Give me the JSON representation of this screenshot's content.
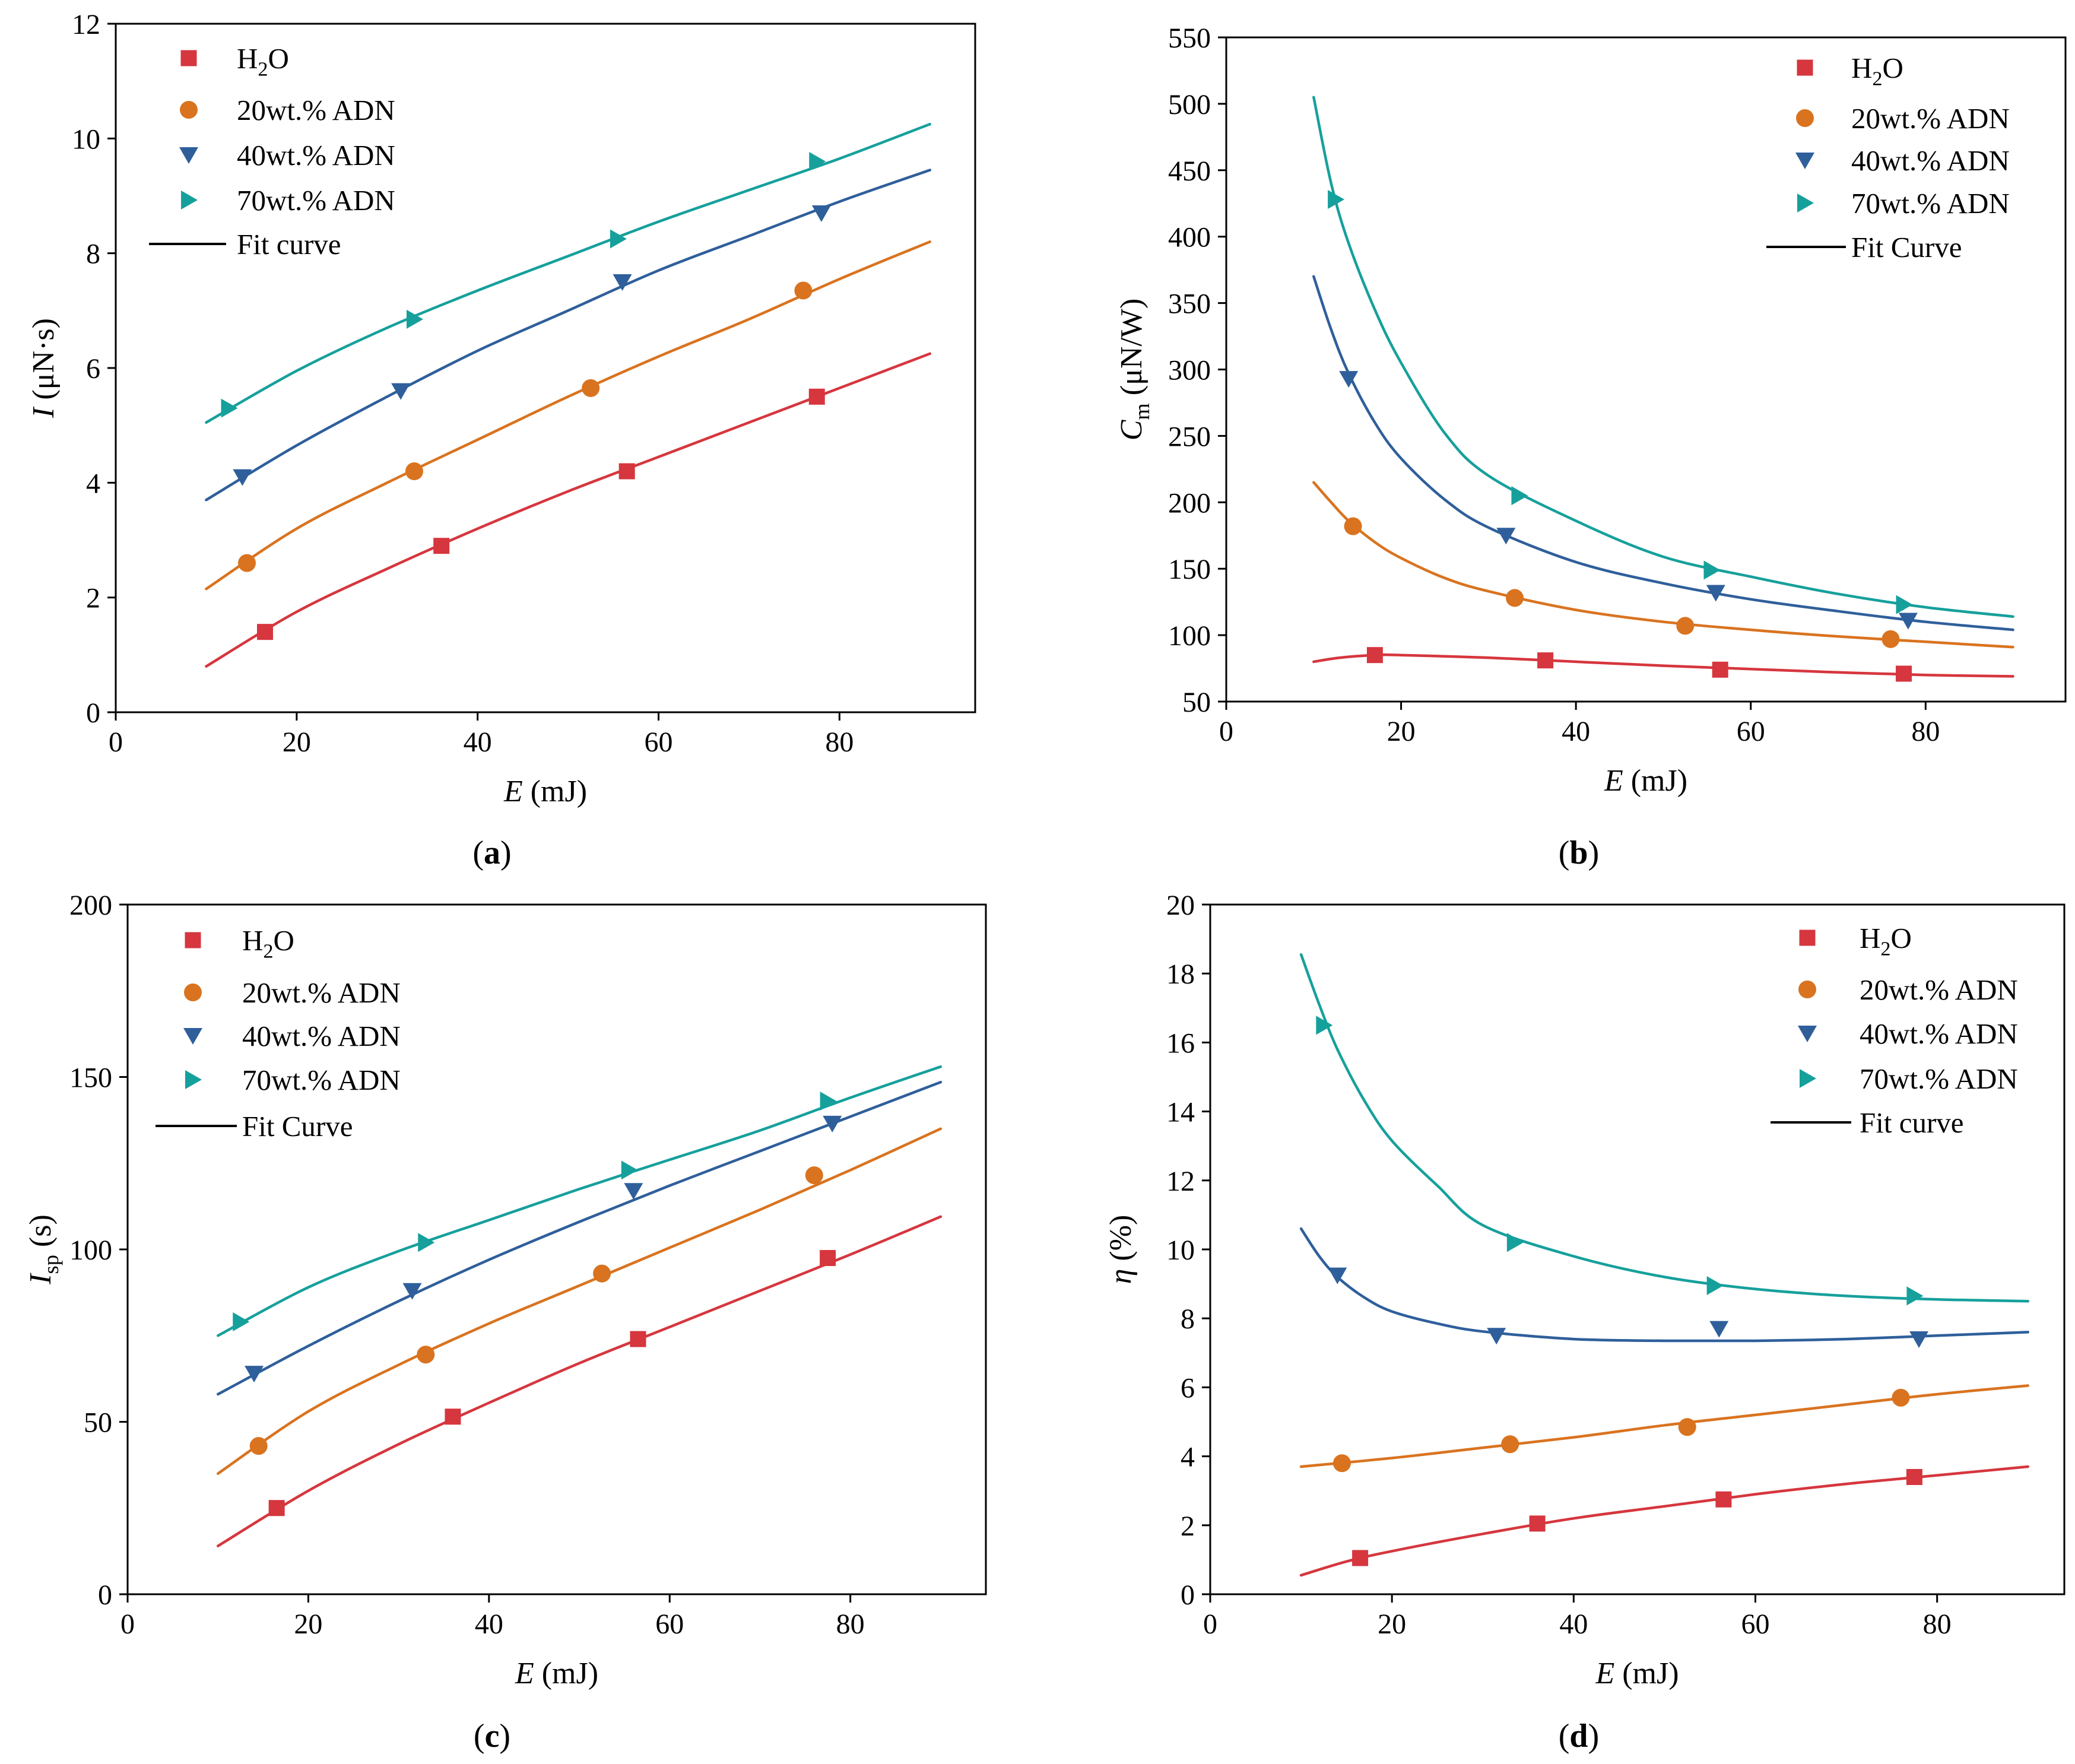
{
  "chart_data": [
    {
      "type": "scatter",
      "panel_label": {
        "open": "(",
        "letter": "a",
        "close": ")"
      },
      "xlabel": {
        "symbol": "E",
        "sub": "",
        "unit": " (mJ)"
      },
      "ylabel": {
        "symbol": "I",
        "sub": "",
        "unit": " (μN·s)"
      },
      "xlim": [
        0,
        95
      ],
      "ylim": [
        0,
        12
      ],
      "xticks": [
        0,
        20,
        40,
        60,
        80
      ],
      "yticks": [
        0,
        2,
        4,
        6,
        8,
        10,
        12
      ],
      "grid": false,
      "legend_position": "top-left",
      "fit_label": "Fit curve",
      "fit_color": "#000000",
      "series": [
        {
          "name": {
            "text": "H",
            "sub": "2",
            "rest": "O"
          },
          "color": "#d6363e",
          "marker": "square",
          "x": [
            16.5,
            36,
            56.5,
            77.5
          ],
          "y": [
            1.4,
            2.9,
            4.2,
            5.5
          ],
          "fit_x": [
            10,
            20,
            30,
            40,
            50,
            60,
            70,
            80,
            90
          ],
          "fit_y": [
            0.8,
            1.75,
            2.5,
            3.2,
            3.85,
            4.45,
            5.05,
            5.65,
            6.25
          ]
        },
        {
          "name": {
            "text": "20wt.% ADN",
            "sub": "",
            "rest": ""
          },
          "color": "#d9731f",
          "marker": "circle",
          "x": [
            14.5,
            33,
            52.5,
            76
          ],
          "y": [
            2.6,
            4.2,
            5.65,
            7.35
          ],
          "fit_x": [
            10,
            20,
            30,
            40,
            50,
            60,
            70,
            80,
            90
          ],
          "fit_y": [
            2.15,
            3.2,
            4.0,
            4.75,
            5.5,
            6.2,
            6.85,
            7.55,
            8.2
          ]
        },
        {
          "name": {
            "text": "40wt.% ADN",
            "sub": "",
            "rest": ""
          },
          "color": "#2f5f9b",
          "marker": "triangle-down",
          "x": [
            14,
            31.5,
            56,
            78
          ],
          "y": [
            4.1,
            5.6,
            7.5,
            8.7
          ],
          "fit_x": [
            10,
            20,
            30,
            40,
            50,
            60,
            70,
            80,
            90
          ],
          "fit_y": [
            3.7,
            4.65,
            5.5,
            6.3,
            7.0,
            7.7,
            8.3,
            8.9,
            9.45
          ]
        },
        {
          "name": {
            "text": "70wt.% ADN",
            "sub": "",
            "rest": ""
          },
          "color": "#16a09c",
          "marker": "triangle-right",
          "x": [
            12.5,
            33,
            55.5,
            77.5
          ],
          "y": [
            5.3,
            6.85,
            8.25,
            9.6
          ],
          "fit_x": [
            10,
            20,
            30,
            40,
            50,
            60,
            70,
            80,
            90
          ],
          "fit_y": [
            5.05,
            5.95,
            6.7,
            7.35,
            7.95,
            8.55,
            9.1,
            9.65,
            10.25
          ]
        }
      ]
    },
    {
      "type": "scatter",
      "panel_label": {
        "open": "(",
        "letter": "b",
        "close": ")"
      },
      "xlabel": {
        "symbol": "E",
        "sub": "",
        "unit": " (mJ)"
      },
      "ylabel": {
        "symbol": "C",
        "sub": "m",
        "unit": " (μN/W)"
      },
      "xlim": [
        0,
        96
      ],
      "ylim": [
        50,
        550
      ],
      "xticks": [
        0,
        20,
        40,
        60,
        80
      ],
      "yticks": [
        50,
        100,
        150,
        200,
        250,
        300,
        350,
        400,
        450,
        500,
        550
      ],
      "grid": false,
      "legend_position": "top-right",
      "fit_label": "Fit Curve",
      "fit_color": "#000000",
      "series": [
        {
          "name": {
            "text": "H",
            "sub": "2",
            "rest": "O"
          },
          "color": "#d6363e",
          "marker": "square",
          "x": [
            17,
            36.5,
            56.5,
            77.5
          ],
          "y": [
            85,
            81,
            74,
            71
          ],
          "fit_x": [
            10,
            13,
            17,
            20,
            30,
            40,
            50,
            60,
            70,
            80,
            90
          ],
          "fit_y": [
            80,
            83,
            85,
            85,
            83,
            80,
            77,
            74.5,
            72,
            70,
            69
          ]
        },
        {
          "name": {
            "text": "20wt.% ADN",
            "sub": "",
            "rest": ""
          },
          "color": "#d9731f",
          "marker": "circle",
          "x": [
            14.5,
            33,
            52.5,
            76
          ],
          "y": [
            182,
            128,
            107,
            97
          ],
          "fit_x": [
            10,
            12,
            14,
            17,
            20,
            25,
            30,
            40,
            50,
            60,
            70,
            80,
            90
          ],
          "fit_y": [
            215,
            200,
            186,
            170,
            158,
            143,
            133,
            119,
            110,
            104,
            99,
            95,
            91
          ]
        },
        {
          "name": {
            "text": "40wt.% ADN",
            "sub": "",
            "rest": ""
          },
          "color": "#2f5f9b",
          "marker": "triangle-down",
          "x": [
            14,
            32,
            56,
            78
          ],
          "y": [
            293,
            175,
            132,
            111
          ],
          "fit_x": [
            10,
            12,
            14,
            17,
            20,
            25,
            30,
            40,
            50,
            60,
            70,
            80,
            90
          ],
          "fit_y": [
            370,
            330,
            297,
            260,
            233,
            202,
            181,
            155,
            139,
            127,
            118,
            110,
            104
          ]
        },
        {
          "name": {
            "text": "70wt.% ADN",
            "sub": "",
            "rest": ""
          },
          "color": "#16a09c",
          "marker": "triangle-right",
          "x": [
            12.5,
            33.5,
            55.5,
            77.5
          ],
          "y": [
            428,
            205,
            149,
            123
          ],
          "fit_x": [
            10,
            12,
            14,
            17,
            20,
            25,
            30,
            40,
            50,
            60,
            70,
            80,
            90
          ],
          "fit_y": [
            505,
            440,
            395,
            345,
            305,
            252,
            220,
            186,
            159,
            144,
            131,
            121,
            114
          ]
        }
      ]
    },
    {
      "type": "scatter",
      "panel_label": {
        "open": "(",
        "letter": "c",
        "close": ")"
      },
      "xlabel": {
        "symbol": "E",
        "sub": "",
        "unit": " (mJ)"
      },
      "ylabel": {
        "symbol": "I",
        "sub": "sp",
        "unit": " (s)"
      },
      "xlim": [
        0,
        95
      ],
      "ylim": [
        0,
        200
      ],
      "xticks": [
        0,
        20,
        40,
        60,
        80
      ],
      "yticks": [
        0,
        50,
        100,
        150,
        200
      ],
      "grid": false,
      "legend_position": "top-left",
      "fit_label": "Fit Curve",
      "fit_color": "#000000",
      "series": [
        {
          "name": {
            "text": "H",
            "sub": "2",
            "rest": "O"
          },
          "color": "#d6363e",
          "marker": "square",
          "x": [
            16.5,
            36,
            56.5,
            77.5
          ],
          "y": [
            25,
            51.5,
            74,
            97.5
          ],
          "fit_x": [
            10,
            20,
            30,
            40,
            50,
            60,
            70,
            80,
            90
          ],
          "fit_y": [
            14,
            30,
            43.5,
            55.5,
            67,
            77.5,
            88,
            98.5,
            109.5
          ]
        },
        {
          "name": {
            "text": "20wt.% ADN",
            "sub": "",
            "rest": ""
          },
          "color": "#d9731f",
          "marker": "circle",
          "x": [
            14.5,
            33,
            52.5,
            76
          ],
          "y": [
            43,
            69.5,
            93,
            121.5
          ],
          "fit_x": [
            10,
            20,
            30,
            40,
            50,
            60,
            70,
            80,
            90
          ],
          "fit_y": [
            35,
            53,
            66.5,
            78.5,
            89.5,
            100.5,
            111.5,
            123,
            135
          ]
        },
        {
          "name": {
            "text": "40wt.% ADN",
            "sub": "",
            "rest": ""
          },
          "color": "#2f5f9b",
          "marker": "triangle-down",
          "x": [
            14,
            31.5,
            56,
            78
          ],
          "y": [
            64,
            88,
            117,
            136.5
          ],
          "fit_x": [
            10,
            20,
            30,
            40,
            50,
            60,
            70,
            80,
            90
          ],
          "fit_y": [
            58,
            72,
            85,
            97,
            108,
            118.5,
            128.5,
            138.5,
            148.5
          ]
        },
        {
          "name": {
            "text": "70wt.% ADN",
            "sub": "",
            "rest": ""
          },
          "color": "#16a09c",
          "marker": "triangle-right",
          "x": [
            12.5,
            33,
            55.5,
            77.5
          ],
          "y": [
            79,
            102,
            123,
            143
          ],
          "fit_x": [
            10,
            20,
            30,
            40,
            50,
            60,
            70,
            80,
            90
          ],
          "fit_y": [
            75,
            89,
            99.5,
            108.5,
            117.5,
            126,
            134.5,
            144,
            153
          ]
        }
      ]
    },
    {
      "type": "scatter",
      "panel_label": {
        "open": "(",
        "letter": "d",
        "close": ")"
      },
      "xlabel": {
        "symbol": "E",
        "sub": "",
        "unit": " (mJ)"
      },
      "ylabel": {
        "symbol": "η",
        "sub": "",
        "unit": " (%)"
      },
      "xlim": [
        0,
        94
      ],
      "ylim": [
        0,
        20
      ],
      "xticks": [
        0,
        20,
        40,
        60,
        80
      ],
      "yticks": [
        0,
        2,
        4,
        6,
        8,
        10,
        12,
        14,
        16,
        18,
        20
      ],
      "grid": false,
      "legend_position": "top-right",
      "fit_label": "Fit curve",
      "fit_color": "#000000",
      "series": [
        {
          "name": {
            "text": "H",
            "sub": "2",
            "rest": "O"
          },
          "color": "#d6363e",
          "marker": "square",
          "x": [
            16.5,
            36,
            56.5,
            77.5
          ],
          "y": [
            1.05,
            2.05,
            2.75,
            3.4
          ],
          "fit_x": [
            10,
            15,
            20,
            30,
            40,
            50,
            60,
            70,
            80,
            90
          ],
          "fit_y": [
            0.55,
            0.95,
            1.25,
            1.75,
            2.2,
            2.55,
            2.9,
            3.2,
            3.45,
            3.7
          ]
        },
        {
          "name": {
            "text": "20wt.% ADN",
            "sub": "",
            "rest": ""
          },
          "color": "#d9731f",
          "marker": "circle",
          "x": [
            14.5,
            33,
            52.5,
            76
          ],
          "y": [
            3.8,
            4.35,
            4.85,
            5.7
          ],
          "fit_x": [
            10,
            20,
            30,
            40,
            50,
            60,
            70,
            80,
            90
          ],
          "fit_y": [
            3.7,
            3.95,
            4.25,
            4.55,
            4.9,
            5.2,
            5.5,
            5.8,
            6.05
          ]
        },
        {
          "name": {
            "text": "40wt.% ADN",
            "sub": "",
            "rest": ""
          },
          "color": "#2f5f9b",
          "marker": "triangle-down",
          "x": [
            14,
            31.5,
            56,
            78
          ],
          "y": [
            9.25,
            7.5,
            7.7,
            7.4
          ],
          "fit_x": [
            10,
            12,
            14,
            17,
            20,
            25,
            30,
            40,
            50,
            60,
            70,
            80,
            90
          ],
          "fit_y": [
            10.6,
            9.8,
            9.2,
            8.6,
            8.2,
            7.85,
            7.62,
            7.4,
            7.35,
            7.35,
            7.4,
            7.5,
            7.6
          ]
        },
        {
          "name": {
            "text": "70wt.% ADN",
            "sub": "",
            "rest": ""
          },
          "color": "#16a09c",
          "marker": "triangle-right",
          "x": [
            12.5,
            33.5,
            55.5,
            77.5
          ],
          "y": [
            16.5,
            10.2,
            8.95,
            8.65
          ],
          "fit_x": [
            10,
            12,
            14,
            17,
            20,
            25,
            30,
            40,
            50,
            60,
            70,
            80,
            90
          ],
          "fit_y": [
            18.55,
            17.1,
            15.8,
            14.3,
            13.15,
            11.85,
            10.7,
            9.8,
            9.2,
            8.85,
            8.65,
            8.55,
            8.5
          ]
        }
      ]
    }
  ]
}
